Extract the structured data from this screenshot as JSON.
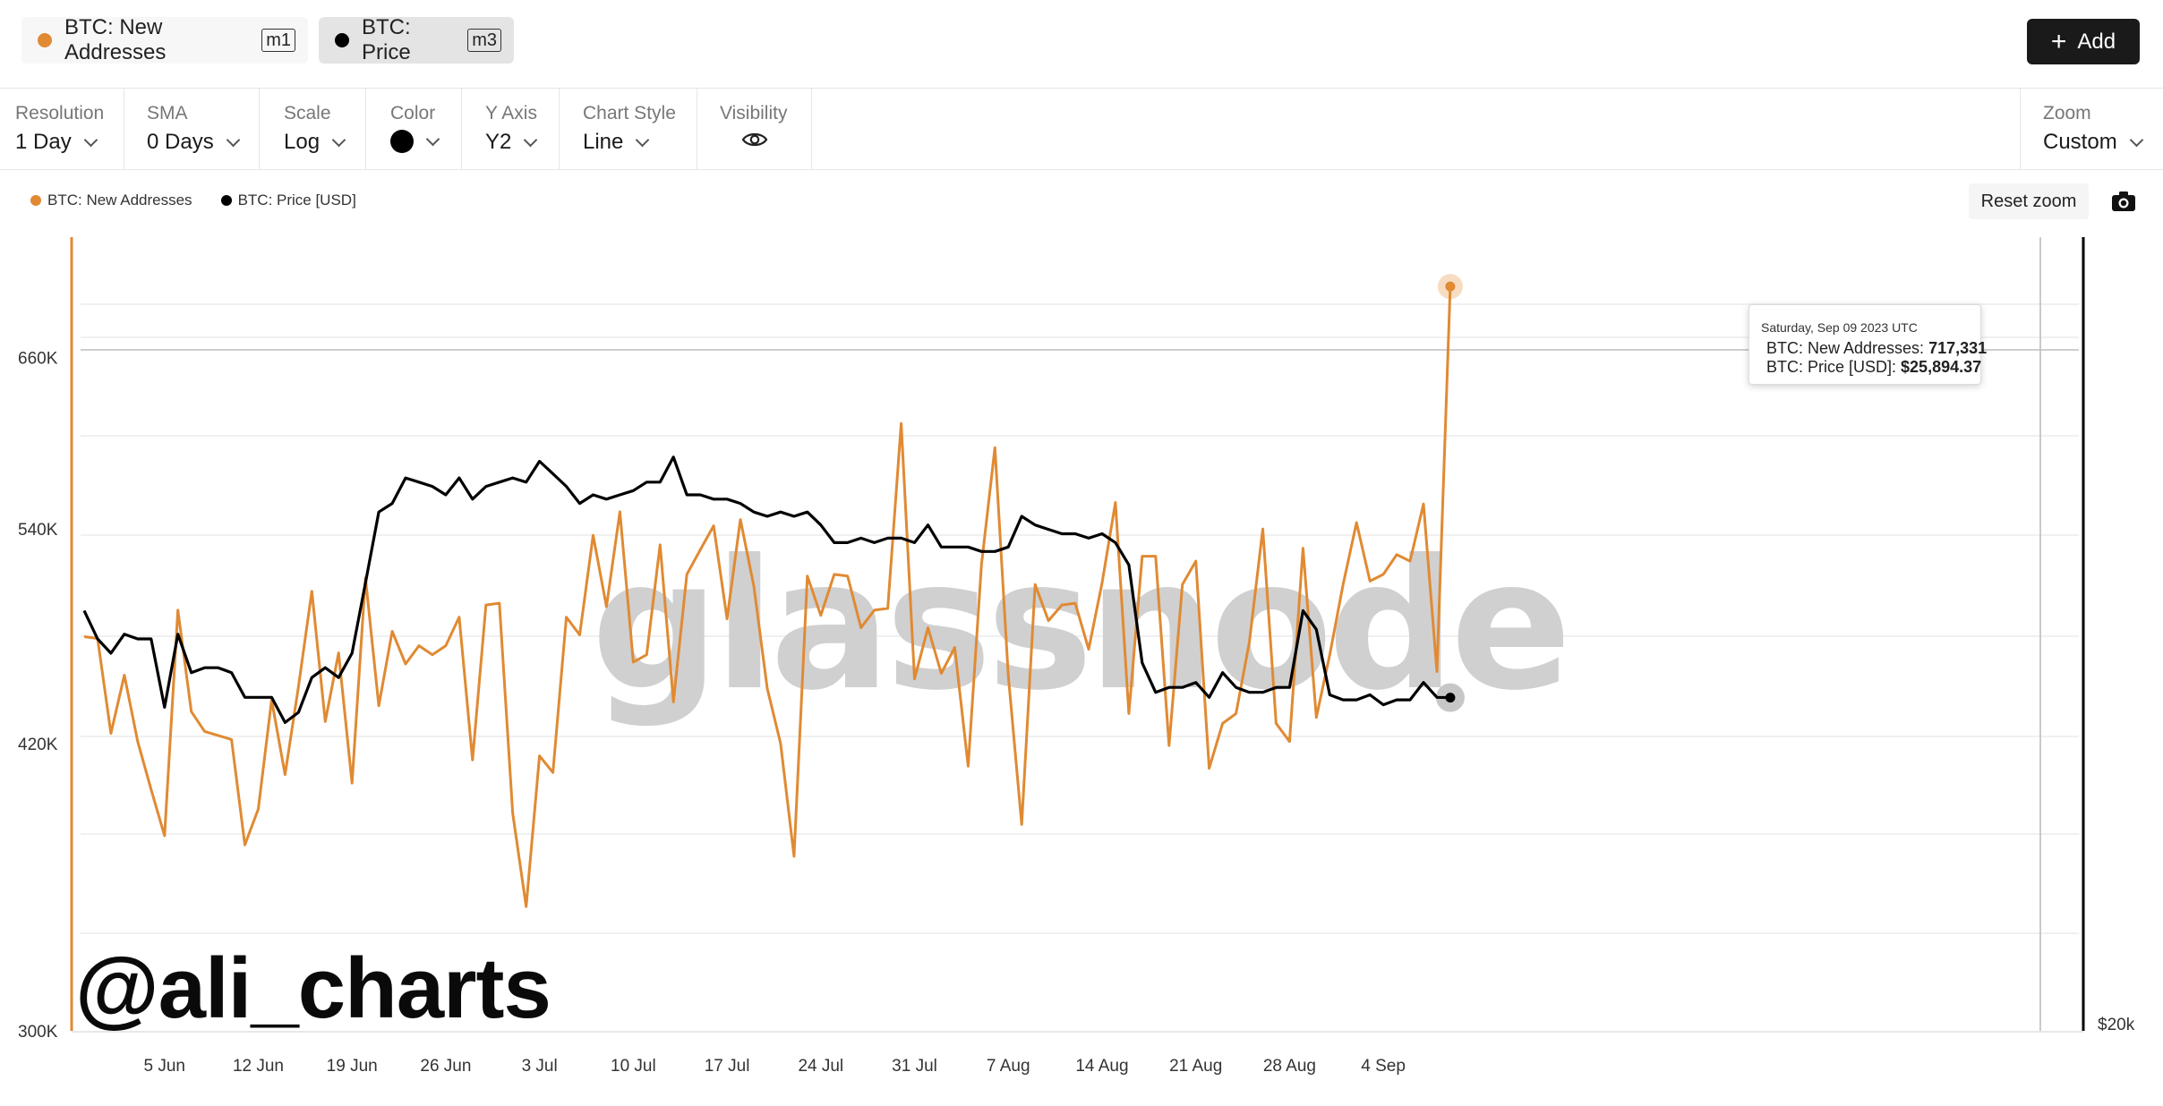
{
  "header": {
    "tabs": [
      {
        "label": "BTC: New Addresses",
        "tag": "m1",
        "color": "#e08a33"
      },
      {
        "label": "BTC: Price",
        "tag": "m3",
        "color": "#000000"
      }
    ],
    "add_label": "Add"
  },
  "settings": {
    "resolution": {
      "label": "Resolution",
      "value": "1 Day"
    },
    "sma": {
      "label": "SMA",
      "value": "0 Days"
    },
    "scale": {
      "label": "Scale",
      "value": "Log"
    },
    "color": {
      "label": "Color",
      "value": "#000000"
    },
    "y_axis": {
      "label": "Y Axis",
      "value": "Y2"
    },
    "chart_style": {
      "label": "Chart Style",
      "value": "Line"
    },
    "visibility": {
      "label": "Visibility"
    },
    "zoom": {
      "label": "Zoom",
      "value": "Custom"
    }
  },
  "legend": {
    "items": [
      {
        "label": "BTC: New Addresses",
        "color": "#e08a33"
      },
      {
        "label": "BTC: Price [USD]",
        "color": "#000000"
      }
    ],
    "reset_zoom": "Reset zoom"
  },
  "tooltip": {
    "date": "Saturday, Sep 09 2023 UTC",
    "rows": [
      {
        "label": "BTC: New Addresses:",
        "value": "717,331",
        "color": "#e08a33"
      },
      {
        "label": "BTC: Price [USD]:",
        "value": "$25,894.37",
        "color": "#000000"
      }
    ]
  },
  "watermark": "glassnode",
  "handle": "@ali_charts",
  "chart_data": {
    "type": "line",
    "x": [
      "2023-05-30",
      "2023-05-31",
      "2023-06-01",
      "2023-06-02",
      "2023-06-03",
      "2023-06-04",
      "2023-06-05",
      "2023-06-06",
      "2023-06-07",
      "2023-06-08",
      "2023-06-09",
      "2023-06-10",
      "2023-06-11",
      "2023-06-12",
      "2023-06-13",
      "2023-06-14",
      "2023-06-15",
      "2023-06-16",
      "2023-06-17",
      "2023-06-18",
      "2023-06-19",
      "2023-06-20",
      "2023-06-21",
      "2023-06-22",
      "2023-06-23",
      "2023-06-24",
      "2023-06-25",
      "2023-06-26",
      "2023-06-27",
      "2023-06-28",
      "2023-06-29",
      "2023-06-30",
      "2023-07-01",
      "2023-07-02",
      "2023-07-03",
      "2023-07-04",
      "2023-07-05",
      "2023-07-06",
      "2023-07-07",
      "2023-07-08",
      "2023-07-09",
      "2023-07-10",
      "2023-07-11",
      "2023-07-12",
      "2023-07-13",
      "2023-07-14",
      "2023-07-15",
      "2023-07-16",
      "2023-07-17",
      "2023-07-18",
      "2023-07-19",
      "2023-07-20",
      "2023-07-21",
      "2023-07-22",
      "2023-07-23",
      "2023-07-24",
      "2023-07-25",
      "2023-07-26",
      "2023-07-27",
      "2023-07-28",
      "2023-07-29",
      "2023-07-30",
      "2023-07-31",
      "2023-08-01",
      "2023-08-02",
      "2023-08-03",
      "2023-08-04",
      "2023-08-05",
      "2023-08-06",
      "2023-08-07",
      "2023-08-08",
      "2023-08-09",
      "2023-08-10",
      "2023-08-11",
      "2023-08-12",
      "2023-08-13",
      "2023-08-14",
      "2023-08-15",
      "2023-08-16",
      "2023-08-17",
      "2023-08-18",
      "2023-08-19",
      "2023-08-20",
      "2023-08-21",
      "2023-08-22",
      "2023-08-23",
      "2023-08-24",
      "2023-08-25",
      "2023-08-26",
      "2023-08-27",
      "2023-08-28",
      "2023-08-29",
      "2023-08-30",
      "2023-08-31",
      "2023-09-01",
      "2023-09-02",
      "2023-09-03",
      "2023-09-04",
      "2023-09-05",
      "2023-09-06",
      "2023-09-07",
      "2023-09-08",
      "2023-09-09"
    ],
    "x_ticks": [
      "5 Jun",
      "12 Jun",
      "19 Jun",
      "26 Jun",
      "3 Jul",
      "10 Jul",
      "17 Jul",
      "24 Jul",
      "31 Jul",
      "7 Aug",
      "14 Aug",
      "21 Aug",
      "28 Aug",
      "4 Sep"
    ],
    "y_left": {
      "scale": "log",
      "range": [
        300000,
        760000
      ],
      "ticks": [
        "300K",
        "420K",
        "540K",
        "660K"
      ],
      "tick_values": [
        300000,
        420000,
        540000,
        660000
      ]
    },
    "y_right": {
      "scale": "log",
      "range": [
        20000,
        37000
      ],
      "ticks": [
        "$20k"
      ],
      "tick_values": [
        20000
      ]
    },
    "series": [
      {
        "name": "BTC: New Addresses",
        "axis": "left",
        "color": "#e08a33",
        "values": [
          476000,
          475000,
          425000,
          455000,
          421000,
          398000,
          377000,
          491000,
          436000,
          426000,
          424000,
          422000,
          373000,
          389000,
          442000,
          405000,
          449000,
          502000,
          431000,
          467000,
          401000,
          510000,
          439000,
          479000,
          461000,
          471000,
          466000,
          471000,
          487000,
          412000,
          494000,
          495000,
          387000,
          347000,
          414000,
          406000,
          487000,
          477000,
          536000,
          493000,
          551000,
          462000,
          466000,
          530000,
          441000,
          512000,
          527000,
          542000,
          486000,
          546000,
          505000,
          448000,
          420000,
          368000,
          511000,
          488000,
          512000,
          511000,
          481000,
          491000,
          492000,
          611000,
          453000,
          481000,
          456000,
          470000,
          409000,
          518000,
          594000,
          455000,
          382000,
          506000,
          485000,
          494000,
          495000,
          469000,
          507000,
          557000,
          435000,
          523000,
          523000,
          419000,
          506000,
          520000,
          408000,
          430000,
          435000,
          473000,
          540000,
          430000,
          421000,
          528000,
          433000,
          466000,
          506000,
          544000,
          508000,
          512000,
          524000,
          520000,
          556000,
          457000,
          717331
        ]
      },
      {
        "name": "BTC: Price [USD]",
        "axis": "right",
        "color": "#000000",
        "values": [
          27700,
          27100,
          26800,
          27200,
          27100,
          27100,
          25700,
          27200,
          26400,
          26500,
          26500,
          26400,
          25900,
          25900,
          25900,
          25400,
          25600,
          26300,
          26500,
          26300,
          26800,
          28300,
          29900,
          30100,
          30700,
          30600,
          30500,
          30300,
          30700,
          30200,
          30500,
          30600,
          30700,
          30600,
          31100,
          30800,
          30500,
          30100,
          30300,
          30200,
          30300,
          30400,
          30600,
          30600,
          31200,
          30300,
          30300,
          30200,
          30200,
          30100,
          29900,
          29800,
          29900,
          29800,
          29900,
          29600,
          29200,
          29200,
          29300,
          29200,
          29300,
          29300,
          29200,
          29600,
          29100,
          29100,
          29100,
          29000,
          29000,
          29100,
          29800,
          29600,
          29500,
          29400,
          29400,
          29300,
          29400,
          29200,
          28700,
          26600,
          26000,
          26100,
          26100,
          26200,
          25900,
          26400,
          26100,
          26000,
          26000,
          26100,
          26100,
          27700,
          27300,
          25950,
          25850,
          25850,
          25950,
          25750,
          25850,
          25850,
          26200,
          25900,
          25894.37
        ]
      }
    ]
  }
}
